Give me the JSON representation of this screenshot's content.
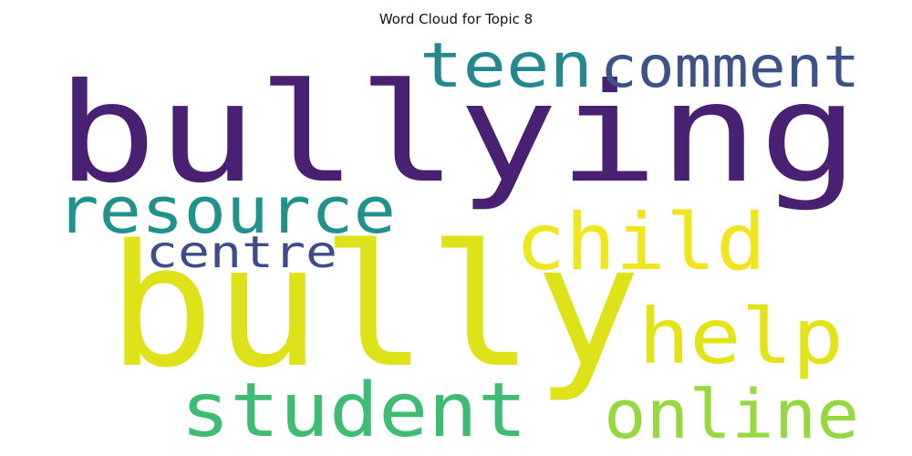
{
  "chart_data": {
    "type": "wordcloud",
    "title": "Word Cloud for Topic 8",
    "words": [
      {
        "text": "bullying",
        "color": "#482173"
      },
      {
        "text": "bully",
        "color": "#dde318"
      },
      {
        "text": "teen",
        "color": "#23898e"
      },
      {
        "text": "comment",
        "color": "#3b528b"
      },
      {
        "text": "resource",
        "color": "#21918c"
      },
      {
        "text": "child",
        "color": "#f1e51d"
      },
      {
        "text": "centre",
        "color": "#3e4c8a"
      },
      {
        "text": "help",
        "color": "#e2e418"
      },
      {
        "text": "student",
        "color": "#3fbc73"
      },
      {
        "text": "online",
        "color": "#95d840"
      }
    ]
  }
}
